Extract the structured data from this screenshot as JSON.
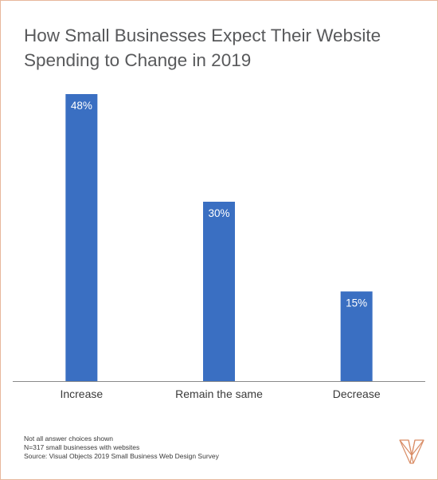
{
  "title_line1": "How Small Businesses Expect Their Website",
  "title_line2": "Spending to Change in 2019",
  "notes": [
    "Not all answer choices shown",
    "N=317 small businesses with websites",
    "Source: Visual Objects 2019 Small Business Web Design Survey"
  ],
  "colors": {
    "bar": "#3a6fc2",
    "frame": "#e8b79c",
    "axis": "#8a8a8a",
    "logo": "#d98d66"
  },
  "chart_data": {
    "type": "bar",
    "title": "How Small Businesses Expect Their Website Spending to Change in 2019",
    "categories": [
      "Increase",
      "Remain the same",
      "Decrease"
    ],
    "values": [
      48,
      30,
      15
    ],
    "value_labels": [
      "48%",
      "30%",
      "15%"
    ],
    "unit": "%",
    "ylim": [
      0,
      48
    ],
    "grid": false,
    "legend": "none"
  },
  "logo_icon": "visual-objects-logo-icon"
}
